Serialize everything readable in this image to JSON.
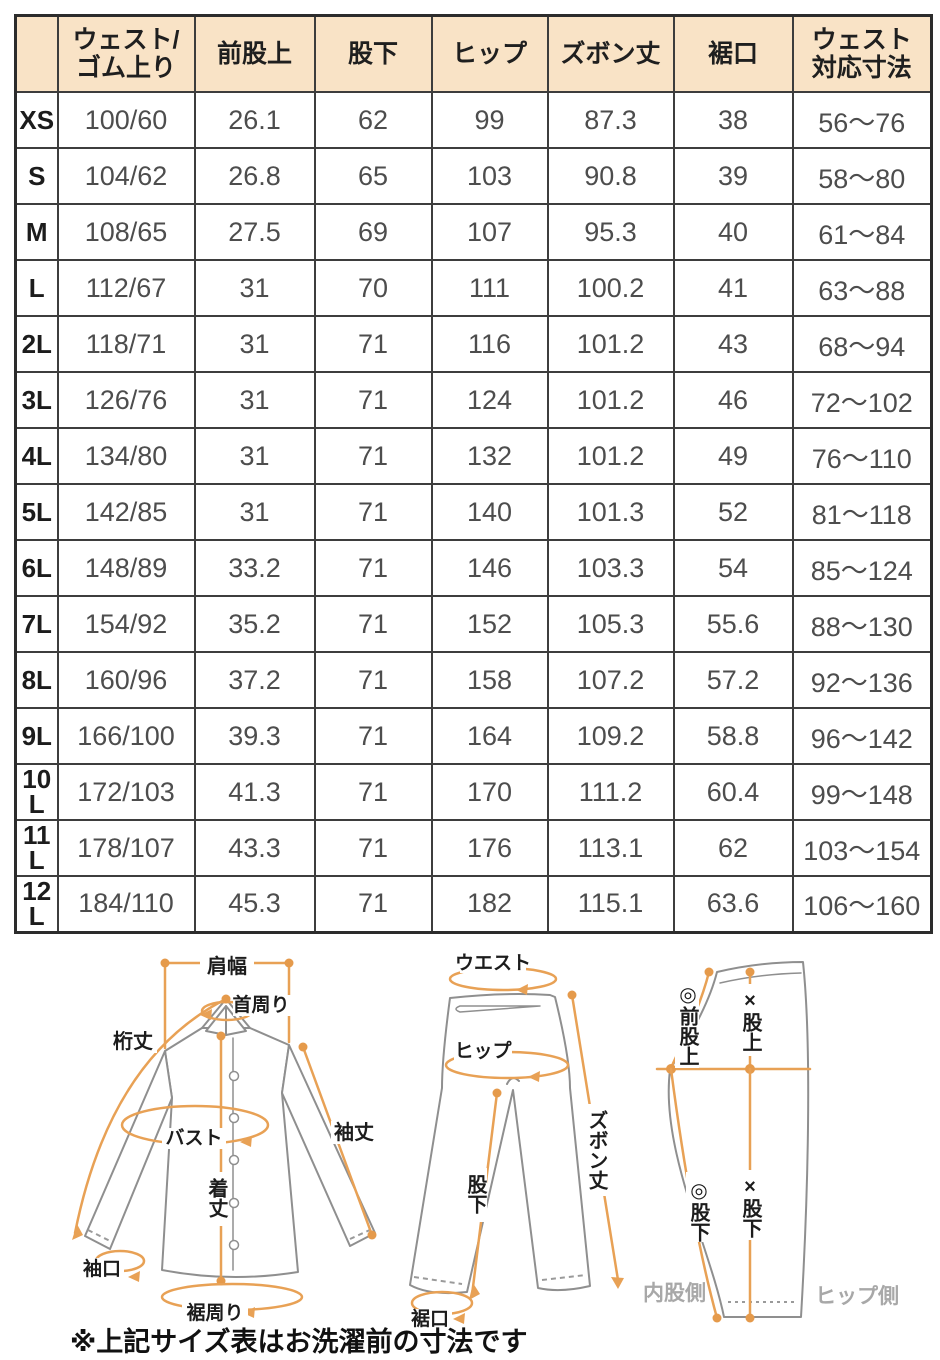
{
  "table": {
    "header": [
      "",
      "ウェスト/\nゴム上り",
      "前股上",
      "股下",
      "ヒップ",
      "ズボン丈",
      "裾口",
      "ウェスト\n対応寸法"
    ],
    "rows": [
      {
        "size": "XS",
        "values": [
          "100/60",
          "26.1",
          "62",
          "99",
          "87.3",
          "38",
          "56〜76"
        ]
      },
      {
        "size": "S",
        "values": [
          "104/62",
          "26.8",
          "65",
          "103",
          "90.8",
          "39",
          "58〜80"
        ]
      },
      {
        "size": "M",
        "values": [
          "108/65",
          "27.5",
          "69",
          "107",
          "95.3",
          "40",
          "61〜84"
        ]
      },
      {
        "size": "L",
        "values": [
          "112/67",
          "31",
          "70",
          "111",
          "100.2",
          "41",
          "63〜88"
        ]
      },
      {
        "size": "2L",
        "values": [
          "118/71",
          "31",
          "71",
          "116",
          "101.2",
          "43",
          "68〜94"
        ]
      },
      {
        "size": "3L",
        "values": [
          "126/76",
          "31",
          "71",
          "124",
          "101.2",
          "46",
          "72〜102"
        ]
      },
      {
        "size": "4L",
        "values": [
          "134/80",
          "31",
          "71",
          "132",
          "101.2",
          "49",
          "76〜110"
        ]
      },
      {
        "size": "5L",
        "values": [
          "142/85",
          "31",
          "71",
          "140",
          "101.3",
          "52",
          "81〜118"
        ]
      },
      {
        "size": "6L",
        "values": [
          "148/89",
          "33.2",
          "71",
          "146",
          "103.3",
          "54",
          "85〜124"
        ]
      },
      {
        "size": "7L",
        "values": [
          "154/92",
          "35.2",
          "71",
          "152",
          "105.3",
          "55.6",
          "88〜130"
        ]
      },
      {
        "size": "8L",
        "values": [
          "160/96",
          "37.2",
          "71",
          "158",
          "107.2",
          "57.2",
          "92〜136"
        ]
      },
      {
        "size": "9L",
        "values": [
          "166/100",
          "39.3",
          "71",
          "164",
          "109.2",
          "58.8",
          "96〜142"
        ]
      },
      {
        "size": "10L",
        "values": [
          "172/103",
          "41.3",
          "71",
          "170",
          "111.2",
          "60.4",
          "99〜148"
        ]
      },
      {
        "size": "11L",
        "values": [
          "178/107",
          "43.3",
          "71",
          "176",
          "113.1",
          "62",
          "103〜154"
        ]
      },
      {
        "size": "12L",
        "values": [
          "184/110",
          "45.3",
          "71",
          "182",
          "115.1",
          "63.6",
          "106〜160"
        ]
      }
    ]
  },
  "diagrams": {
    "shirt": {
      "shoulder_width": "肩幅",
      "neck": "首周り",
      "yuki": "桁丈",
      "bust": "バスト",
      "body_length": "着丈",
      "sleeve_length": "袖丈",
      "cuff": "袖口",
      "hem_round": "裾周り"
    },
    "pants_front": {
      "waist": "ウエスト",
      "hip": "ヒップ",
      "length": "ズボン丈",
      "inseam": "股下",
      "hem": "裾口"
    },
    "pants_side": {
      "front_rise": "◎前股上",
      "rise": "×股上",
      "inseam_inner": "◎股下",
      "inseam_outer": "×股下",
      "inner_side": "内股側",
      "hip_side": "ヒップ側"
    }
  },
  "note": "※上記サイズ表はお洗濯前の寸法です",
  "colors": {
    "header_bg": "#f9e3c6",
    "accent_orange": "#e8a155",
    "outline_gray": "#8f8f8f",
    "value_text": "#4d4d4d"
  }
}
